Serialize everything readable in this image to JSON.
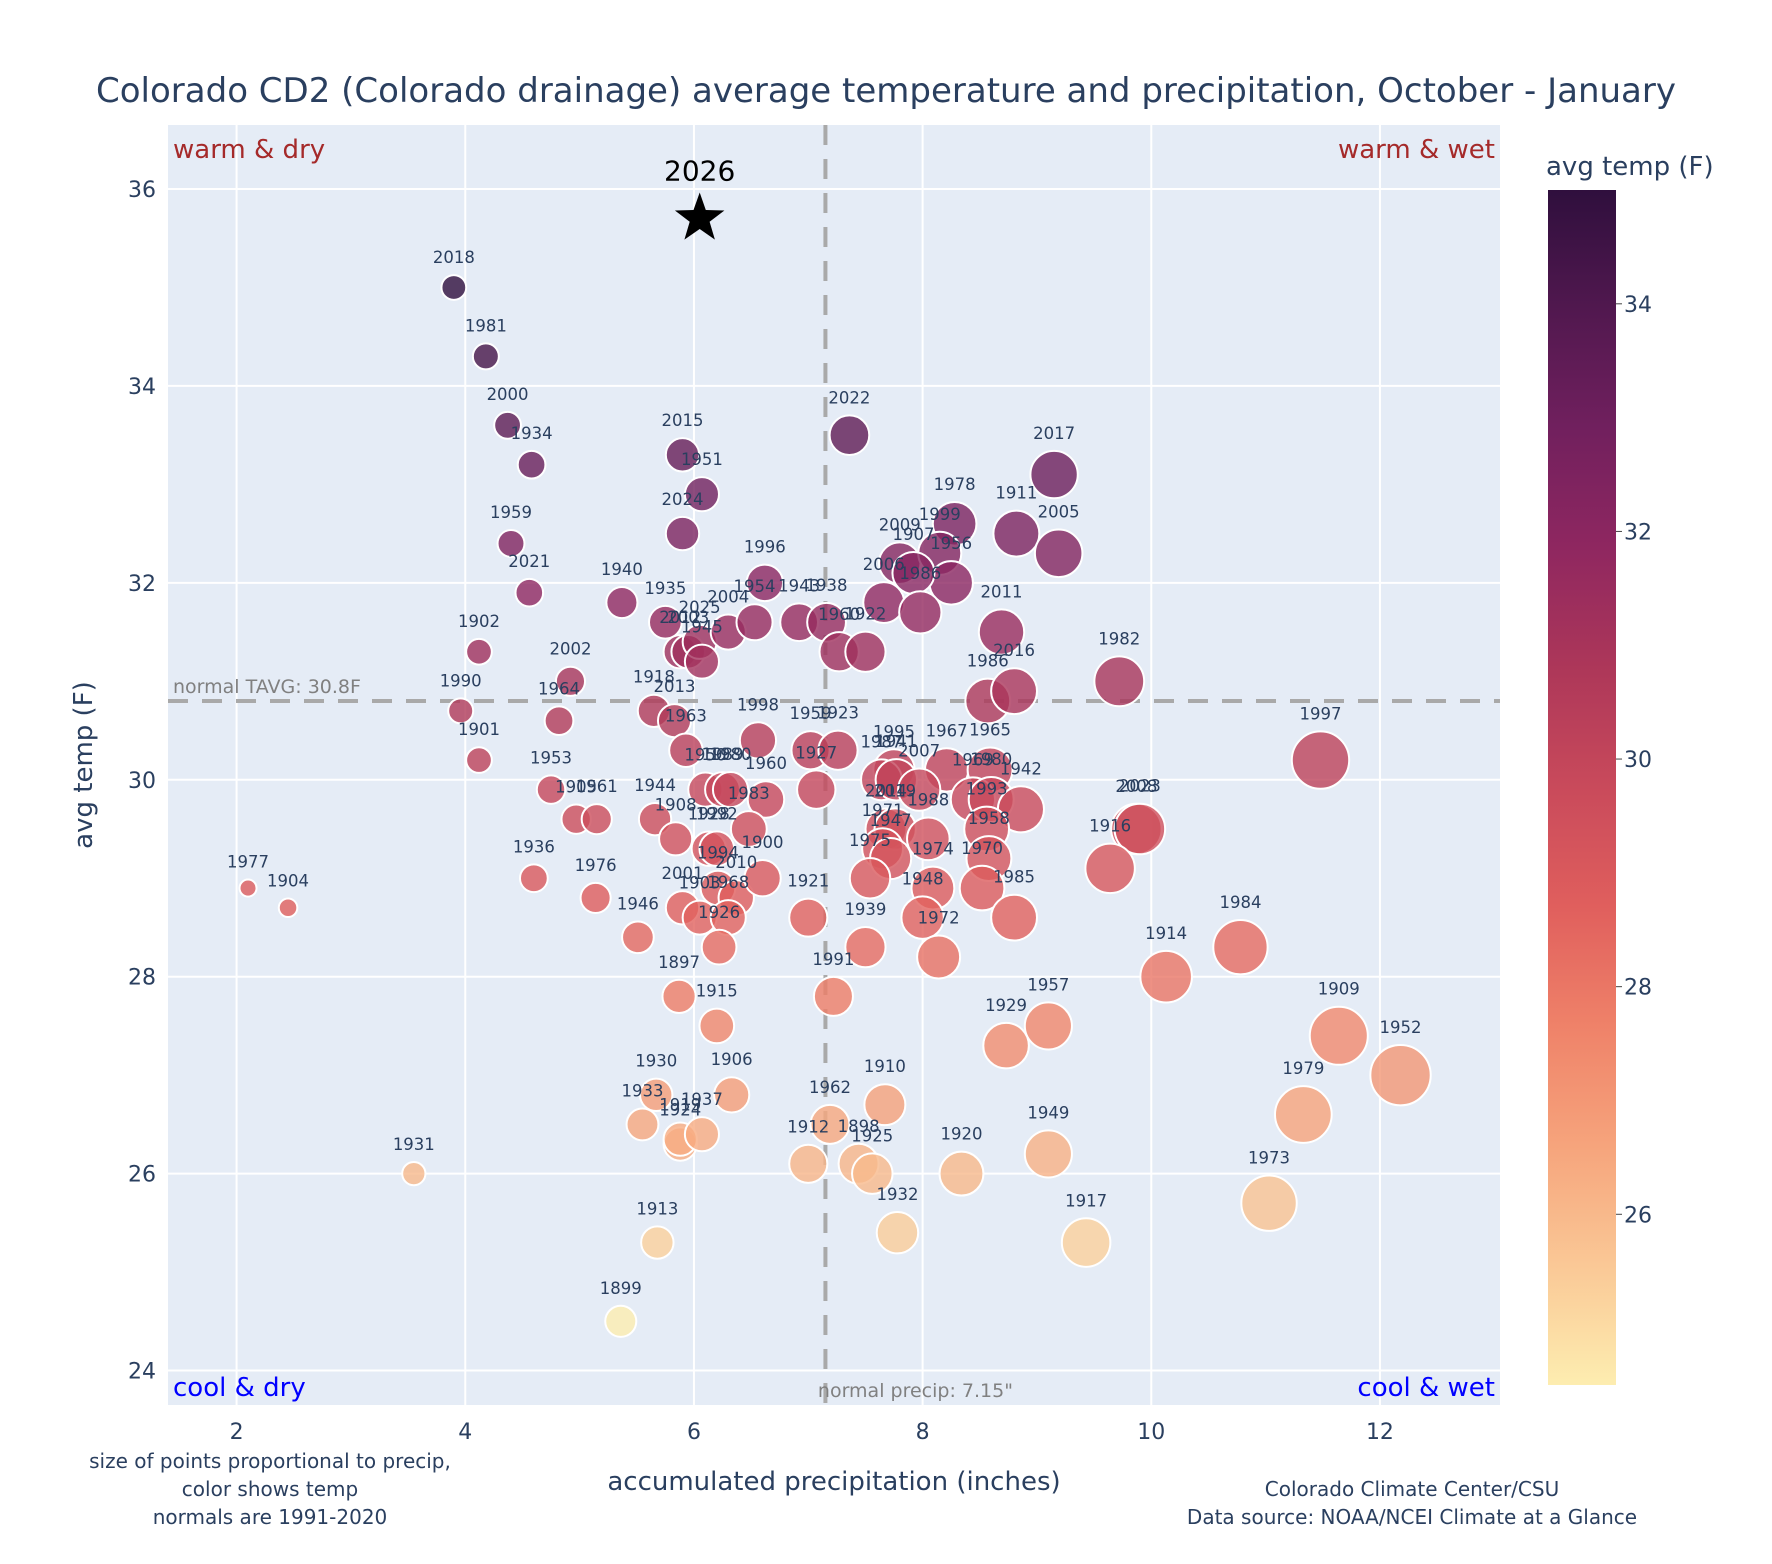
{
  "chart_data": {
    "type": "scatter",
    "title": "Colorado CD2 (Colorado drainage) average temperature and precipitation, October - January",
    "xlabel": "accumulated precipitation (inches)",
    "ylabel": "avg temp (F)",
    "xlim": [
      1.4,
      13.05
    ],
    "ylim": [
      23.65,
      36.65
    ],
    "x_ticks": [
      2,
      4,
      6,
      8,
      10,
      12
    ],
    "y_ticks": [
      24,
      26,
      28,
      30,
      32,
      34,
      36
    ],
    "grid": true,
    "colorbar": {
      "title": "avg temp (F)",
      "range": [
        24.5,
        35.0
      ],
      "ticks": [
        26,
        28,
        30,
        32,
        34
      ],
      "colorscale": [
        "#fdedb0",
        "#fac896",
        "#f6a47c",
        "#ef8269",
        "#e05f5d",
        "#c94a5b",
        "#ad3759",
        "#8f2760",
        "#71205e",
        "#51184f",
        "#2f0f3d"
      ]
    },
    "reference_lines": {
      "normal_temp": {
        "value": 30.8,
        "label": "normal TAVG: 30.8F"
      },
      "normal_precip": {
        "value": 7.15,
        "label": "normal precip: 7.15\""
      }
    },
    "quadrant_labels": {
      "top_left": "warm & dry",
      "top_right": "warm & wet",
      "bottom_left": "cool & dry",
      "bottom_right": "cool & wet"
    },
    "quadrant_colors": {
      "warm": "#a52a2a",
      "cool": "#0000ff"
    },
    "highlight": {
      "label": "2026",
      "x": 6.05,
      "y": 35.7,
      "marker": "star"
    },
    "points": [
      {
        "year": "2018",
        "x": 3.9,
        "y": 35.0
      },
      {
        "year": "1981",
        "x": 4.18,
        "y": 34.3
      },
      {
        "year": "2000",
        "x": 4.37,
        "y": 33.6
      },
      {
        "year": "1934",
        "x": 4.58,
        "y": 33.2
      },
      {
        "year": "1959",
        "x": 4.4,
        "y": 32.4
      },
      {
        "year": "2021",
        "x": 4.56,
        "y": 31.9
      },
      {
        "year": "1902",
        "x": 4.12,
        "y": 31.3
      },
      {
        "year": "1990",
        "x": 3.96,
        "y": 30.7
      },
      {
        "year": "1901",
        "x": 4.12,
        "y": 30.2
      },
      {
        "year": "2002",
        "x": 4.92,
        "y": 31.0
      },
      {
        "year": "1964",
        "x": 4.82,
        "y": 30.6
      },
      {
        "year": "1953",
        "x": 4.75,
        "y": 29.9
      },
      {
        "year": "1905",
        "x": 4.97,
        "y": 29.6
      },
      {
        "year": "1961",
        "x": 5.15,
        "y": 29.6
      },
      {
        "year": "1936",
        "x": 4.6,
        "y": 29.0
      },
      {
        "year": "1976",
        "x": 5.14,
        "y": 28.8
      },
      {
        "year": "1977",
        "x": 2.1,
        "y": 28.9
      },
      {
        "year": "1904",
        "x": 2.45,
        "y": 28.7
      },
      {
        "year": "1931",
        "x": 3.55,
        "y": 26.0
      },
      {
        "year": "1940",
        "x": 5.37,
        "y": 31.8
      },
      {
        "year": "1935",
        "x": 5.75,
        "y": 31.6
      },
      {
        "year": "2015",
        "x": 5.9,
        "y": 33.3
      },
      {
        "year": "1951",
        "x": 6.07,
        "y": 32.9
      },
      {
        "year": "2024",
        "x": 5.9,
        "y": 32.5
      },
      {
        "year": "2012",
        "x": 5.88,
        "y": 31.3
      },
      {
        "year": "2003",
        "x": 5.95,
        "y": 31.3
      },
      {
        "year": "2025",
        "x": 6.05,
        "y": 31.4
      },
      {
        "year": "1945",
        "x": 6.07,
        "y": 31.2
      },
      {
        "year": "2004",
        "x": 6.3,
        "y": 31.5
      },
      {
        "year": "1954",
        "x": 6.53,
        "y": 31.6
      },
      {
        "year": "1996",
        "x": 6.62,
        "y": 32.0
      },
      {
        "year": "1943",
        "x": 6.92,
        "y": 31.6
      },
      {
        "year": "1938",
        "x": 7.16,
        "y": 31.6
      },
      {
        "year": "1960",
        "x": 7.27,
        "y": 31.3
      },
      {
        "year": "1922",
        "x": 7.5,
        "y": 31.3
      },
      {
        "year": "1918",
        "x": 5.65,
        "y": 30.7
      },
      {
        "year": "2013",
        "x": 5.83,
        "y": 30.6
      },
      {
        "year": "1963",
        "x": 5.93,
        "y": 30.3
      },
      {
        "year": "1998",
        "x": 6.56,
        "y": 30.4
      },
      {
        "year": "1950",
        "x": 6.1,
        "y": 29.9
      },
      {
        "year": "1989",
        "x": 6.25,
        "y": 29.9
      },
      {
        "year": "1980",
        "x": 6.32,
        "y": 29.9
      },
      {
        "year": "1960b",
        "x": 6.63,
        "y": 29.8
      },
      {
        "year": "1944",
        "x": 5.66,
        "y": 29.6
      },
      {
        "year": "1908",
        "x": 5.84,
        "y": 29.4
      },
      {
        "year": "1928",
        "x": 6.13,
        "y": 29.3
      },
      {
        "year": "1992",
        "x": 6.2,
        "y": 29.3
      },
      {
        "year": "1983",
        "x": 6.48,
        "y": 29.5
      },
      {
        "year": "1994",
        "x": 6.21,
        "y": 28.9
      },
      {
        "year": "2010",
        "x": 6.37,
        "y": 28.8
      },
      {
        "year": "1900",
        "x": 6.6,
        "y": 29.0
      },
      {
        "year": "2001",
        "x": 5.9,
        "y": 28.7
      },
      {
        "year": "1903",
        "x": 6.05,
        "y": 28.6
      },
      {
        "year": "1968",
        "x": 6.3,
        "y": 28.6
      },
      {
        "year": "1926",
        "x": 6.22,
        "y": 28.3
      },
      {
        "year": "1946",
        "x": 5.51,
        "y": 28.4
      },
      {
        "year": "1897",
        "x": 5.87,
        "y": 27.8
      },
      {
        "year": "1915",
        "x": 6.2,
        "y": 27.5
      },
      {
        "year": "1930",
        "x": 5.67,
        "y": 26.8
      },
      {
        "year": "1906",
        "x": 6.33,
        "y": 26.8
      },
      {
        "year": "1933",
        "x": 5.55,
        "y": 26.5
      },
      {
        "year": "1924",
        "x": 5.88,
        "y": 26.3
      },
      {
        "year": "1919",
        "x": 5.88,
        "y": 26.35
      },
      {
        "year": "1937",
        "x": 6.07,
        "y": 26.4
      },
      {
        "year": "1913",
        "x": 5.68,
        "y": 25.3
      },
      {
        "year": "1899",
        "x": 5.36,
        "y": 24.5
      },
      {
        "year": "2022",
        "x": 7.36,
        "y": 33.5
      },
      {
        "year": "2017",
        "x": 9.15,
        "y": 33.1
      },
      {
        "year": "1978",
        "x": 8.28,
        "y": 32.6
      },
      {
        "year": "1911",
        "x": 8.82,
        "y": 32.5
      },
      {
        "year": "2005",
        "x": 9.19,
        "y": 32.3
      },
      {
        "year": "2009",
        "x": 7.8,
        "y": 32.2
      },
      {
        "year": "1999",
        "x": 8.15,
        "y": 32.3
      },
      {
        "year": "1956",
        "x": 8.25,
        "y": 32.0
      },
      {
        "year": "2006",
        "x": 7.66,
        "y": 31.8
      },
      {
        "year": "1907",
        "x": 7.92,
        "y": 32.1
      },
      {
        "year": "1986x",
        "x": 7.98,
        "y": 31.7
      },
      {
        "year": "2011",
        "x": 8.69,
        "y": 31.5
      },
      {
        "year": "1982",
        "x": 9.72,
        "y": 31.0
      },
      {
        "year": "1986",
        "x": 8.57,
        "y": 30.8
      },
      {
        "year": "2016",
        "x": 8.8,
        "y": 30.9
      },
      {
        "year": "1997",
        "x": 11.48,
        "y": 30.2
      },
      {
        "year": "1959b",
        "x": 7.02,
        "y": 30.3
      },
      {
        "year": "1923",
        "x": 7.26,
        "y": 30.3
      },
      {
        "year": "1927",
        "x": 7.07,
        "y": 29.9
      },
      {
        "year": "1995",
        "x": 7.75,
        "y": 30.1
      },
      {
        "year": "1987",
        "x": 7.64,
        "y": 30.0
      },
      {
        "year": "1967",
        "x": 8.21,
        "y": 30.1
      },
      {
        "year": "1965",
        "x": 8.59,
        "y": 30.1
      },
      {
        "year": "1941",
        "x": 7.77,
        "y": 30.0
      },
      {
        "year": "2007",
        "x": 7.97,
        "y": 29.9
      },
      {
        "year": "1969",
        "x": 8.44,
        "y": 29.8
      },
      {
        "year": "1980b",
        "x": 8.6,
        "y": 29.8
      },
      {
        "year": "1942",
        "x": 8.86,
        "y": 29.7
      },
      {
        "year": "2014",
        "x": 7.68,
        "y": 29.5
      },
      {
        "year": "2019",
        "x": 7.76,
        "y": 29.5
      },
      {
        "year": "1971",
        "x": 7.65,
        "y": 29.3
      },
      {
        "year": "1988",
        "x": 8.05,
        "y": 29.4
      },
      {
        "year": "1993",
        "x": 8.56,
        "y": 29.5
      },
      {
        "year": "1947",
        "x": 7.72,
        "y": 29.2
      },
      {
        "year": "1958",
        "x": 8.58,
        "y": 29.2
      },
      {
        "year": "1974",
        "x": 8.09,
        "y": 28.9
      },
      {
        "year": "1975",
        "x": 7.54,
        "y": 29.0
      },
      {
        "year": "1970",
        "x": 8.52,
        "y": 28.9
      },
      {
        "year": "1985",
        "x": 8.8,
        "y": 28.6
      },
      {
        "year": "1948",
        "x": 8.0,
        "y": 28.6
      },
      {
        "year": "1939",
        "x": 7.5,
        "y": 28.3
      },
      {
        "year": "1972",
        "x": 8.14,
        "y": 28.2
      },
      {
        "year": "1921",
        "x": 7.0,
        "y": 28.6
      },
      {
        "year": "1991",
        "x": 7.22,
        "y": 27.8
      },
      {
        "year": "2008",
        "x": 9.87,
        "y": 29.5
      },
      {
        "year": "2023",
        "x": 9.9,
        "y": 29.5
      },
      {
        "year": "1916",
        "x": 9.64,
        "y": 29.1
      },
      {
        "year": "1914",
        "x": 10.13,
        "y": 28.0
      },
      {
        "year": "1984",
        "x": 10.78,
        "y": 28.3
      },
      {
        "year": "1957",
        "x": 9.1,
        "y": 27.5
      },
      {
        "year": "1929",
        "x": 8.73,
        "y": 27.3
      },
      {
        "year": "1909",
        "x": 11.64,
        "y": 27.4
      },
      {
        "year": "1952",
        "x": 12.18,
        "y": 27.0
      },
      {
        "year": "1979",
        "x": 11.33,
        "y": 26.6
      },
      {
        "year": "1910",
        "x": 7.67,
        "y": 26.7
      },
      {
        "year": "1962",
        "x": 7.19,
        "y": 26.5
      },
      {
        "year": "1912",
        "x": 7.0,
        "y": 26.1
      },
      {
        "year": "1898",
        "x": 7.44,
        "y": 26.1
      },
      {
        "year": "1925",
        "x": 7.56,
        "y": 26.0
      },
      {
        "year": "1920",
        "x": 8.34,
        "y": 26.0
      },
      {
        "year": "1949",
        "x": 9.1,
        "y": 26.2
      },
      {
        "year": "1932",
        "x": 7.78,
        "y": 25.4
      },
      {
        "year": "1917",
        "x": 9.43,
        "y": 25.3
      },
      {
        "year": "1973",
        "x": 11.03,
        "y": 25.7
      }
    ]
  },
  "footnotes": {
    "left": [
      "size of points proportional to precip,",
      "color shows temp",
      "normals are 1991-2020"
    ],
    "right": [
      "Colorado Climate Center/CSU",
      "Data source: NOAA/NCEI Climate at a Glance"
    ]
  }
}
